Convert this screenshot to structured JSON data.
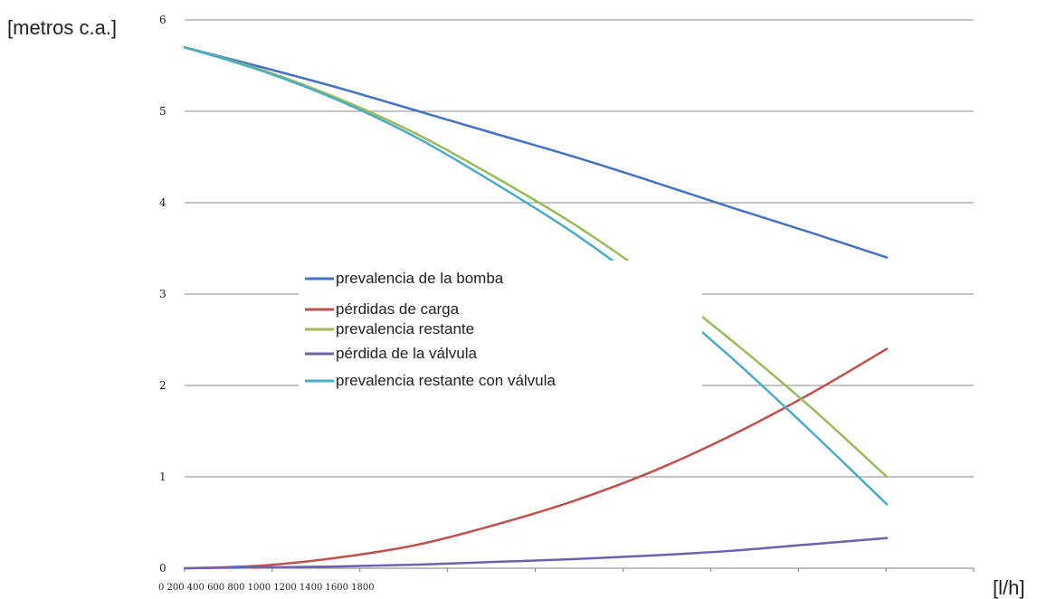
{
  "chart_data": {
    "type": "line",
    "xlabel": "[l/h]",
    "ylabel": "[metros c.a.]",
    "ylim": [
      0,
      6
    ],
    "y_ticks": [
      "0",
      "1",
      "2",
      "3",
      "4",
      "5",
      "6"
    ],
    "x_tick_labels": [
      "0",
      "200",
      "400",
      "600",
      "800",
      "1000",
      "1200",
      "1400",
      "1600",
      "1800"
    ],
    "x_tick_label_text": "0 200 400 600 800 1000 1200 1400 1600 1800",
    "xlim": [
      0,
      1800
    ],
    "grid": "horizontal",
    "legend_position": "center-left",
    "x": [
      0,
      200,
      400,
      600,
      800,
      1000,
      1200,
      1400,
      1600,
      1800
    ],
    "series": [
      {
        "name": "prevalencia de la bomba",
        "color": "#4472C4",
        "values": [
          5.7,
          5.48,
          5.25,
          5.0,
          4.75,
          4.5,
          4.23,
          3.95,
          3.68,
          3.4
        ]
      },
      {
        "name": "pérdidas de carga",
        "color": "#C0504D",
        "values": [
          0.0,
          0.03,
          0.12,
          0.26,
          0.48,
          0.74,
          1.06,
          1.45,
          1.9,
          2.4
        ]
      },
      {
        "name": "prevalencia restante",
        "color": "#9BBB59",
        "values": [
          5.7,
          5.45,
          5.13,
          4.74,
          4.27,
          3.76,
          3.17,
          2.5,
          1.78,
          1.0
        ]
      },
      {
        "name": "pérdida de la válvula",
        "color": "#7060B0",
        "values": [
          0.0,
          0.01,
          0.02,
          0.04,
          0.07,
          0.1,
          0.14,
          0.19,
          0.26,
          0.33
        ]
      },
      {
        "name": "prevalencia restante con válvula",
        "color": "#4BACC6",
        "values": [
          5.7,
          5.44,
          5.11,
          4.7,
          4.2,
          3.66,
          3.03,
          2.31,
          1.52,
          0.7
        ]
      }
    ]
  }
}
